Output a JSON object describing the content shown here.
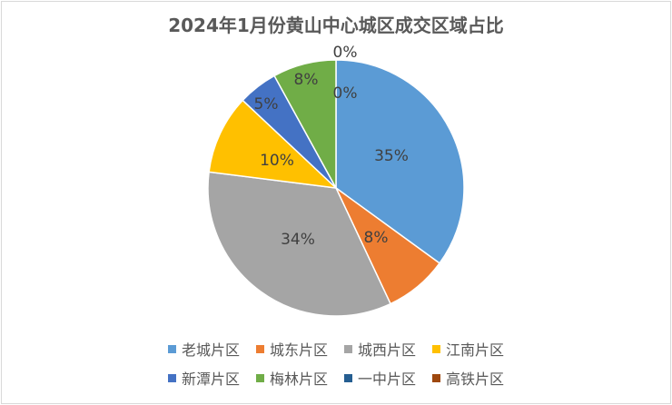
{
  "chart_data": {
    "type": "pie",
    "title": "2024年1月份黄山中心城区成交区域占比",
    "slices": [
      {
        "name": "老城片区",
        "value": 35,
        "label": "35%",
        "color": "#5b9bd5"
      },
      {
        "name": "城东片区",
        "value": 8,
        "label": "8%",
        "color": "#ed7d31"
      },
      {
        "name": "城西片区",
        "value": 34,
        "label": "34%",
        "color": "#a5a5a5"
      },
      {
        "name": "江南片区",
        "value": 10,
        "label": "10%",
        "color": "#ffc000"
      },
      {
        "name": "新潭片区",
        "value": 5,
        "label": "5%",
        "color": "#4472c4"
      },
      {
        "name": "梅林片区",
        "value": 8,
        "label": "8%",
        "color": "#70ad47"
      },
      {
        "name": "一中片区",
        "value": 0,
        "label": "0%",
        "color": "#255e91"
      },
      {
        "name": "高铁片区",
        "value": 0,
        "label": "0%",
        "color": "#9e480e"
      }
    ],
    "legend_position": "bottom"
  }
}
